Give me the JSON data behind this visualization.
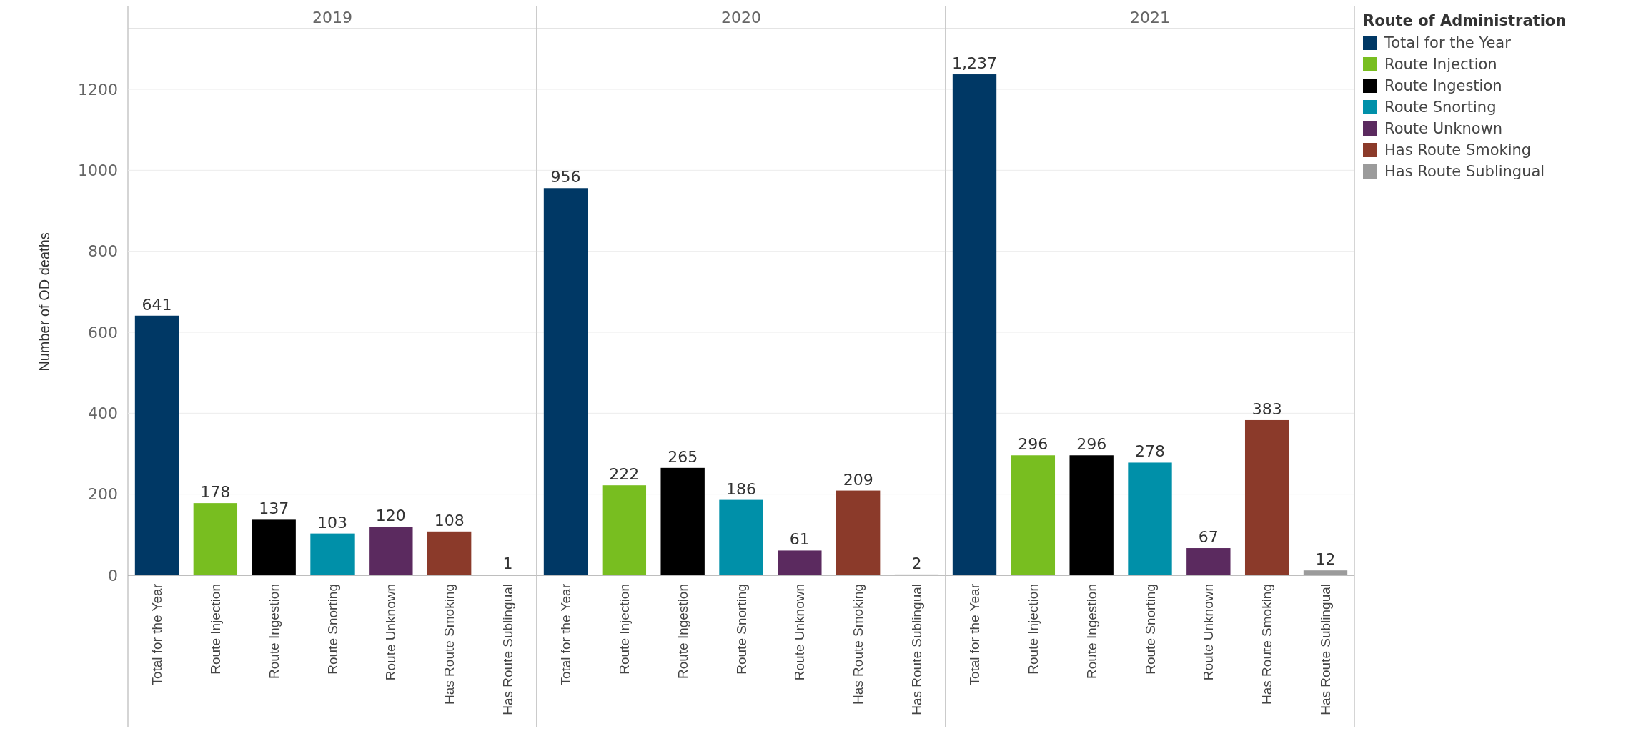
{
  "chart_data": [
    {
      "type": "bar",
      "stacked": true,
      "title": "2019",
      "ylabel": "Number of OD deaths",
      "categories": [
        "Total for the Year",
        "Route Injection",
        "Route Ingestion",
        "Route Snorting",
        "Route Unknown",
        "Has Route Smoking",
        "Has Route Sublingual"
      ],
      "ylim": [
        0,
        1350
      ],
      "yticks": [
        0,
        200,
        400,
        600,
        800,
        1000,
        1200
      ],
      "grid": "y",
      "data_labels": true,
      "series": [
        {
          "color": "#003865",
          "values": [
            641,
            null,
            null,
            null,
            null,
            null,
            null
          ]
        },
        {
          "color": "#78be20",
          "values": [
            null,
            178,
            null,
            null,
            null,
            null,
            null
          ]
        },
        {
          "color": "#000000",
          "values": [
            null,
            null,
            137,
            null,
            null,
            null,
            null
          ]
        },
        {
          "color": "#0090a9",
          "values": [
            null,
            null,
            null,
            103,
            null,
            null,
            null
          ]
        },
        {
          "color": "#5b2a5f",
          "values": [
            null,
            null,
            null,
            null,
            120,
            null,
            null
          ]
        },
        {
          "color": "#8b3a2a",
          "values": [
            null,
            null,
            null,
            null,
            null,
            108,
            null
          ]
        },
        {
          "color": "#9b9b9b",
          "values": [
            null,
            null,
            null,
            null,
            null,
            null,
            1
          ]
        }
      ]
    },
    {
      "type": "bar",
      "stacked": true,
      "title": "2020",
      "categories": [
        "Total for the Year",
        "Route Injection",
        "Route Ingestion",
        "Route Snorting",
        "Route Unknown",
        "Has Route Smoking",
        "Has Route Sublingual"
      ],
      "ylim": [
        0,
        1350
      ],
      "yticks": [
        0,
        200,
        400,
        600,
        800,
        1000,
        1200
      ],
      "grid": "y",
      "data_labels": true,
      "tick_labels": "x",
      "series": [
        {
          "color": "#003865",
          "values": [
            956,
            null,
            null,
            null,
            null,
            null,
            null
          ]
        },
        {
          "color": "#78be20",
          "values": [
            null,
            222,
            null,
            null,
            null,
            null,
            null
          ]
        },
        {
          "color": "#000000",
          "values": [
            null,
            null,
            265,
            null,
            null,
            null,
            null
          ]
        },
        {
          "color": "#0090a9",
          "values": [
            null,
            null,
            null,
            186,
            null,
            null,
            null
          ]
        },
        {
          "color": "#5b2a5f",
          "values": [
            null,
            null,
            null,
            null,
            61,
            null,
            null
          ]
        },
        {
          "color": "#8b3a2a",
          "values": [
            null,
            null,
            null,
            null,
            null,
            209,
            null
          ]
        },
        {
          "color": "#9b9b9b",
          "values": [
            null,
            null,
            null,
            null,
            null,
            null,
            2
          ]
        }
      ]
    },
    {
      "type": "bar",
      "stacked": true,
      "title": "2021",
      "legend_title": "Route of Administration",
      "legend": "right",
      "categories": [
        "Total for the Year",
        "Route Injection",
        "Route Ingestion",
        "Route Snorting",
        "Route Unknown",
        "Has Route Smoking",
        "Has Route Sublingual"
      ],
      "ylim": [
        0,
        1350
      ],
      "yticks": [
        0,
        200,
        400,
        600,
        800,
        1000,
        1200
      ],
      "grid": "y",
      "tick_labels": "x",
      "series": [
        {
          "name": "Total for the Year",
          "color": "#003865",
          "values": [
            1237,
            null,
            null,
            null,
            null,
            null,
            null
          ],
          "value_labels": [
            "1,237",
            null,
            null,
            null,
            null,
            null,
            null
          ]
        },
        {
          "name": "Route Injection",
          "color": "#78be20",
          "values": [
            null,
            296,
            null,
            null,
            null,
            null,
            null
          ],
          "value_labels": [
            null,
            "296",
            null,
            null,
            null,
            null,
            null
          ]
        },
        {
          "name": "Route Ingestion",
          "color": "#000000",
          "values": [
            null,
            null,
            296,
            null,
            null,
            null,
            null
          ],
          "value_labels": [
            null,
            null,
            "296",
            null,
            null,
            null,
            null
          ]
        },
        {
          "name": "Route Snorting",
          "color": "#0090a9",
          "values": [
            null,
            null,
            null,
            278,
            null,
            null,
            null
          ],
          "value_labels": [
            null,
            null,
            null,
            "278",
            null,
            null,
            null
          ]
        },
        {
          "name": "Route Unknown",
          "color": "#5b2a5f",
          "values": [
            null,
            null,
            null,
            null,
            67,
            null,
            null
          ],
          "value_labels": [
            null,
            null,
            null,
            null,
            "67",
            null,
            null
          ]
        },
        {
          "name": "Has Route Smoking",
          "color": "#8b3a2a",
          "values": [
            null,
            null,
            null,
            null,
            null,
            383,
            null
          ],
          "value_labels": [
            null,
            null,
            null,
            null,
            null,
            "383",
            null
          ]
        },
        {
          "name": "Has Route Sublingual",
          "color": "#9b9b9b",
          "values": [
            null,
            null,
            null,
            null,
            null,
            null,
            12
          ],
          "value_labels": [
            null,
            null,
            null,
            null,
            null,
            null,
            "12"
          ]
        }
      ]
    }
  ]
}
